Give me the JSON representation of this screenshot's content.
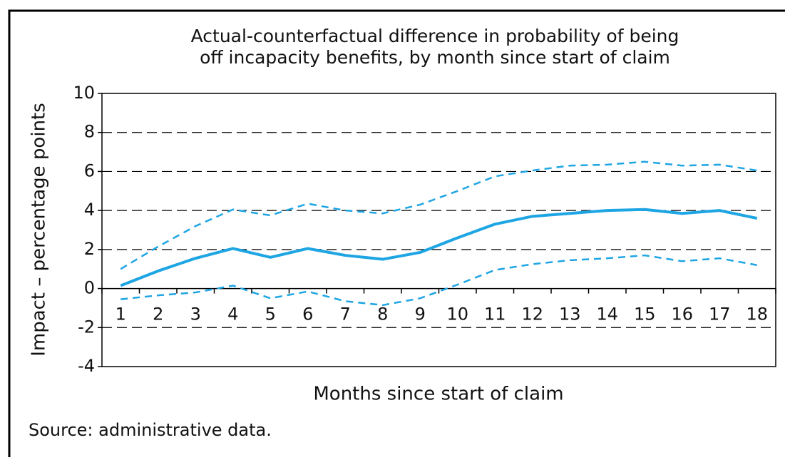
{
  "chart_data": {
    "type": "line",
    "title": [
      "Actual-counterfactual difference in probability of being",
      "off incapacity benefits, by month since start of claim"
    ],
    "x_label": "Months since start of claim",
    "y_label": "Impact – percentage points",
    "source": "Source: administrative data.",
    "categories": [
      "1",
      "2",
      "3",
      "4",
      "5",
      "6",
      "7",
      "8",
      "9",
      "10",
      "11",
      "12",
      "13",
      "14",
      "15",
      "16",
      "17",
      "18"
    ],
    "series": [
      {
        "color": "#1ea5e3",
        "dashed": false,
        "values": [
          0.15,
          0.9,
          1.55,
          2.05,
          1.6,
          2.05,
          1.7,
          1.5,
          1.85,
          2.6,
          3.3,
          3.7,
          3.85,
          4.0,
          4.05,
          3.85,
          4.0,
          3.6
        ]
      },
      {
        "color": "#1ea5e3",
        "dashed": true,
        "values": [
          1.0,
          2.15,
          3.2,
          4.05,
          3.75,
          4.35,
          4.0,
          3.85,
          4.3,
          5.0,
          5.75,
          6.05,
          6.3,
          6.35,
          6.5,
          6.3,
          6.35,
          6.05
        ]
      },
      {
        "color": "#1ea5e3",
        "dashed": true,
        "values": [
          -0.55,
          -0.35,
          -0.2,
          0.15,
          -0.5,
          -0.15,
          -0.65,
          -0.85,
          -0.5,
          0.2,
          0.95,
          1.25,
          1.45,
          1.55,
          1.7,
          1.4,
          1.55,
          1.2
        ]
      }
    ],
    "ylim": [
      -4,
      10
    ],
    "yticks": [
      -4,
      -2,
      0,
      2,
      4,
      6,
      8,
      10
    ],
    "grid": true
  }
}
